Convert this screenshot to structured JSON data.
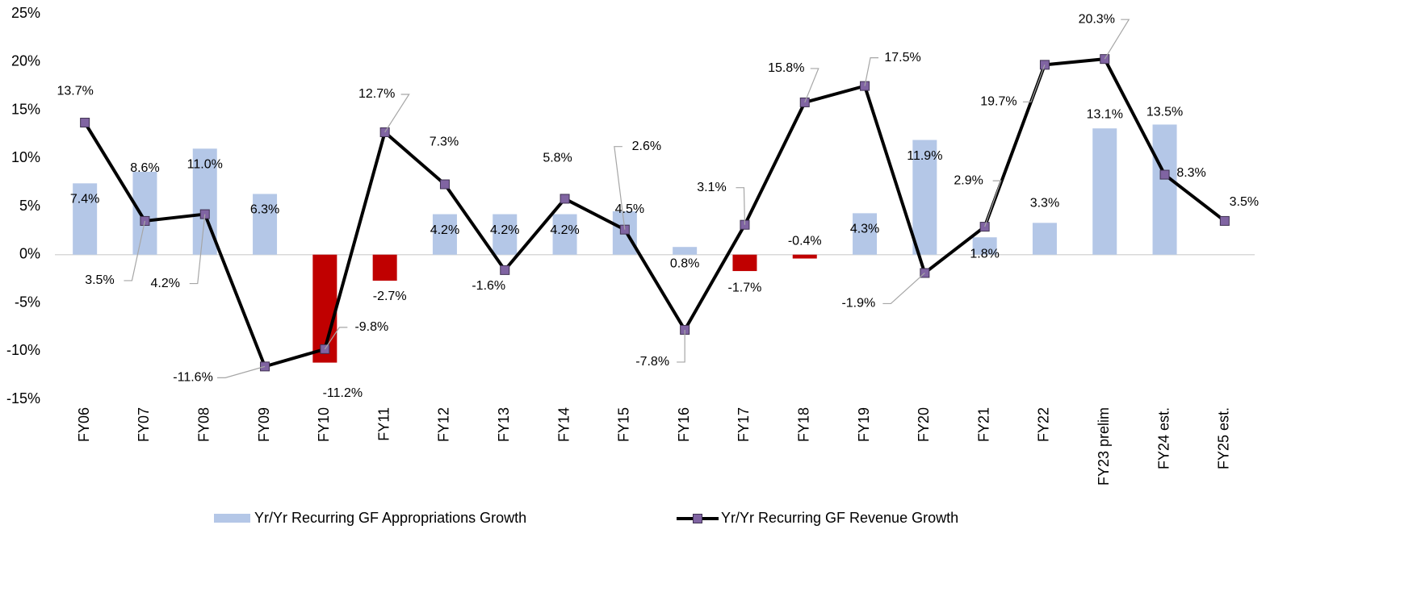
{
  "chart_data": {
    "type": "bar-line",
    "categories": [
      "FY06",
      "FY07",
      "FY08",
      "FY09",
      "FY10",
      "FY11",
      "FY12",
      "FY13",
      "FY14",
      "FY15",
      "FY16",
      "FY17",
      "FY18",
      "FY19",
      "FY20",
      "FY21",
      "FY22",
      "FY23 prelim",
      "FY24 est.",
      "FY25 est."
    ],
    "series": [
      {
        "name": "Yr/Yr Recurring GF Appropriations Growth",
        "type": "bar",
        "color": "#b4c7e7",
        "negative_color": "#c00000",
        "values": [
          7.4,
          8.6,
          11.0,
          6.3,
          -11.2,
          -2.7,
          4.2,
          4.2,
          4.2,
          4.5,
          0.8,
          -1.7,
          -0.4,
          4.3,
          11.9,
          1.8,
          3.3,
          13.1,
          13.5,
          null
        ],
        "value_labels": [
          "7.4%",
          "8.6%",
          "11.0%",
          "6.3%",
          "-11.2%",
          "-2.7%",
          "4.2%",
          "4.2%",
          "4.2%",
          "4.5%",
          "0.8%",
          "-1.7%",
          "-0.4%",
          "4.3%",
          "11.9%",
          "1.8%",
          "3.3%",
          "13.1%",
          "13.5%",
          null
        ]
      },
      {
        "name": "Yr/Yr Recurring GF Revenue Growth",
        "type": "line",
        "color": "#000000",
        "marker_color": "#8064a2",
        "values": [
          13.7,
          3.5,
          4.2,
          -11.6,
          -9.8,
          12.7,
          7.3,
          -1.6,
          5.8,
          2.6,
          -7.8,
          3.1,
          15.8,
          17.5,
          -1.9,
          2.9,
          19.7,
          20.3,
          8.3,
          3.5
        ],
        "value_labels": [
          "13.7%",
          "3.5%",
          "4.2%",
          "-11.6%",
          "-9.8%",
          "12.7%",
          "7.3%",
          "-1.6%",
          "5.8%",
          "2.6%",
          "-7.8%",
          "3.1%",
          "15.8%",
          "17.5%",
          "-1.9%",
          "2.9%",
          "19.7%",
          "20.3%",
          "8.3%",
          "3.5%"
        ]
      }
    ],
    "ylim": [
      -15,
      25
    ],
    "yticks": [
      {
        "value": -15,
        "label": "-15%"
      },
      {
        "value": -10,
        "label": "-10%"
      },
      {
        "value": -5,
        "label": "-5%"
      },
      {
        "value": 0,
        "label": "0%"
      },
      {
        "value": 5,
        "label": "5%"
      },
      {
        "value": 10,
        "label": "10%"
      },
      {
        "value": 15,
        "label": "15%"
      },
      {
        "value": 20,
        "label": "20%"
      },
      {
        "value": 25,
        "label": "25%"
      }
    ],
    "grid": false,
    "legend": "bottom"
  }
}
